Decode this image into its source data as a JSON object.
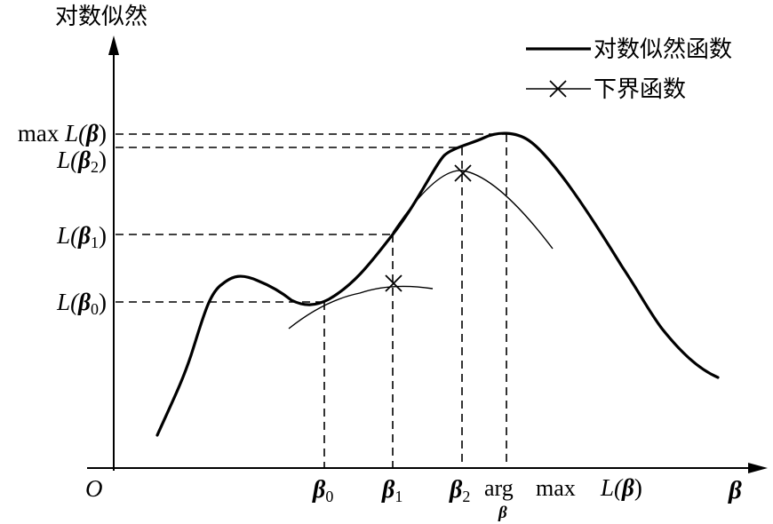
{
  "axes": {
    "y_title": "对数似然",
    "origin": "O",
    "x_symbol": "β"
  },
  "legend": {
    "loglik": "对数似然函数",
    "lower_bound": "下界函数"
  },
  "y_labels": {
    "max": {
      "prefix": "max ",
      "func": "L(",
      "sym": "β",
      "sub": "",
      "close": ")"
    },
    "l2": {
      "func": "L(",
      "sym": "β",
      "sub": "2",
      "close": ")"
    },
    "l1": {
      "func": "L(",
      "sym": "β",
      "sub": "1",
      "close": ")"
    },
    "l0": {
      "func": "L(",
      "sym": "β",
      "sub": "0",
      "close": ")"
    }
  },
  "x_labels": {
    "b0": {
      "sym": "β",
      "sub": "0"
    },
    "b1": {
      "sym": "β",
      "sub": "1"
    },
    "b2": {
      "sym": "β",
      "sub": "2"
    },
    "argmax": {
      "arg": "arg",
      "under": "β",
      "max": "max",
      "func": "L(",
      "sym": "β",
      "close": ")"
    }
  }
}
